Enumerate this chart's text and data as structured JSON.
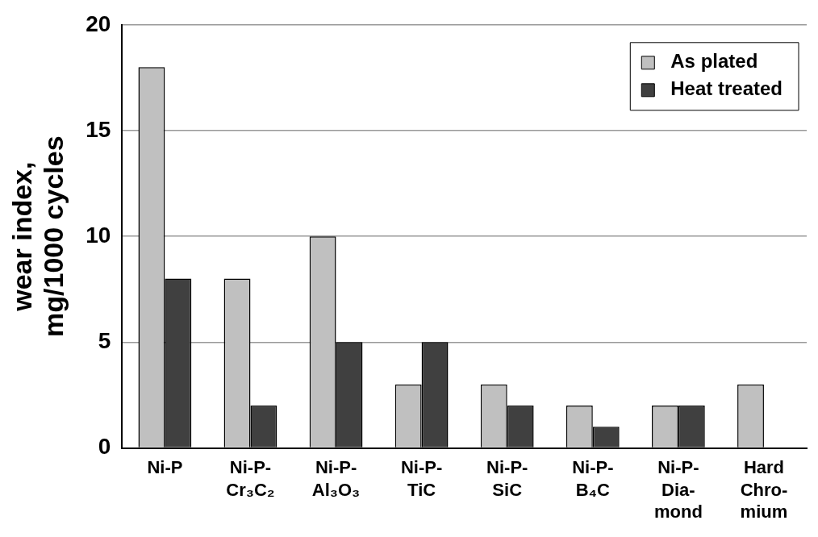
{
  "chart_data": {
    "type": "bar",
    "ylabel": "wear index,\nmg/1000 cycles",
    "categories": [
      "Ni-P",
      "Ni-P-\nCr₃C₂",
      "Ni-P-\nAl₃O₃",
      "Ni-P-\nTiC",
      "Ni-P-\nSiC",
      "Ni-P-\nB₄C",
      "Ni-P-\nDia-\nmond",
      "Hard\nChro-\nmium"
    ],
    "series": [
      {
        "name": "As plated",
        "color": "#c0c0c0",
        "values": [
          18,
          8,
          10,
          3,
          3,
          2,
          2,
          3
        ]
      },
      {
        "name": "Heat treated",
        "color": "#404040",
        "values": [
          8,
          2,
          5,
          5,
          2,
          1,
          2,
          null
        ]
      }
    ],
    "ylim": [
      0,
      20
    ],
    "yticks": [
      0,
      5,
      10,
      15,
      20
    ],
    "grid": "y",
    "legend": "top right"
  }
}
